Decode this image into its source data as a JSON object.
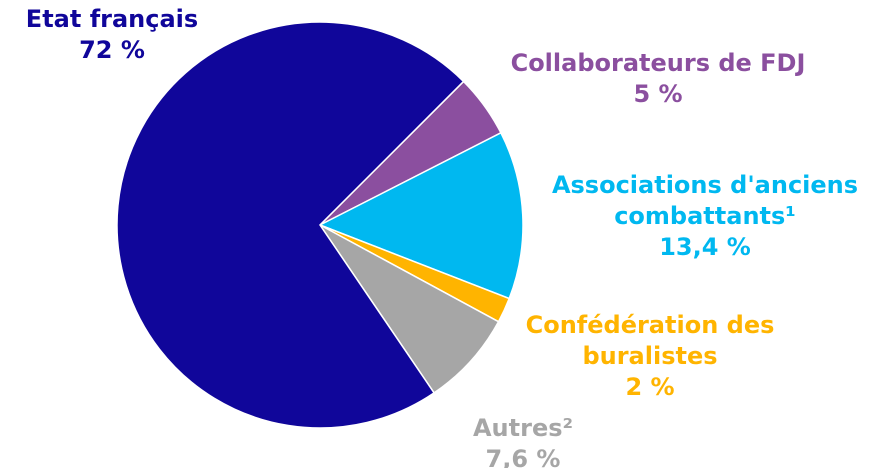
{
  "chart_data": {
    "type": "pie",
    "categories": [
      "Collaborateurs de FDJ",
      "Associations d'anciens combattants¹",
      "Confédération des buralistes",
      "Autres²",
      "Etat français"
    ],
    "values": [
      5,
      13.4,
      2,
      7.6,
      72
    ],
    "value_labels": [
      "5 %",
      "13,4 %",
      "2 %",
      "7,6 %",
      "72 %"
    ],
    "colors": [
      "#8b4f9f",
      "#00b8f0",
      "#ffb400",
      "#a6a6a6",
      "#10069a"
    ]
  }
}
